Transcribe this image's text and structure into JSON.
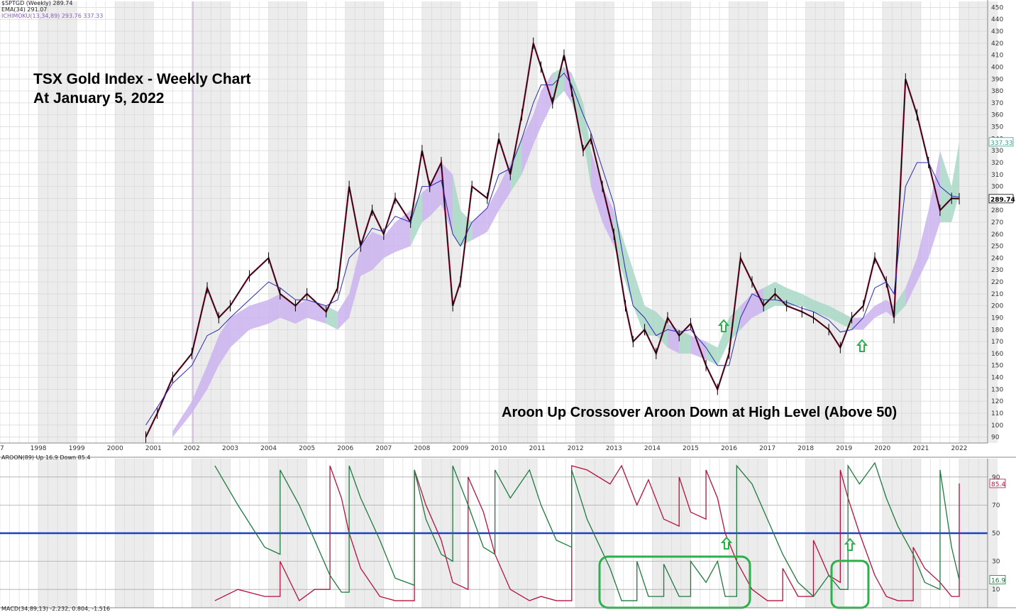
{
  "colors": {
    "price": "#000000",
    "price_down": "#b0003a",
    "ema": "#2a2ab0",
    "cloud_bull": "#cbb3ee",
    "cloud_bear": "#a9d8c7",
    "aroon_up": "#1f7a3f",
    "aroon_down": "#b3123f",
    "midline": "#2040c8",
    "arrow": "#2bb04a",
    "highlight_box": "#2bb04a",
    "grid": "#d6d6d6",
    "band": "#ececec"
  },
  "legend": {
    "symbol": "$SPTGD (Weekly) 289.74",
    "ema": "EMA(34) 291.07",
    "ichimoku": "ICHIMOKU(13,34,89) 293.76 337.33",
    "aroon": "AROON(89) Up 16.9 Down 85.4",
    "macd": "MACD(34,89,13) -2.232, 0.804, -1.516"
  },
  "titles": {
    "line1": "TSX Gold Index - Weekly Chart",
    "line2": "At January 5, 2022",
    "annotation": "Aroon Up Crossover Aroon Down at High Level (Above 50)"
  },
  "chart_data": [
    {
      "type": "line",
      "name": "price",
      "ylim": [
        85,
        455
      ],
      "y_ticks": [
        90,
        100,
        110,
        120,
        130,
        140,
        150,
        160,
        170,
        180,
        190,
        200,
        210,
        220,
        230,
        240,
        250,
        260,
        270,
        280,
        290,
        300,
        310,
        320,
        330,
        340,
        350,
        360,
        370,
        380,
        390,
        400,
        410,
        420,
        430,
        440,
        450
      ],
      "x_ticks": [
        "7",
        "1998",
        "1999",
        "2000",
        "2001",
        "2002",
        "2003",
        "2004",
        "2005",
        "2006",
        "2007",
        "2008",
        "2009",
        "2010",
        "2011",
        "2012",
        "2013",
        "2014",
        "2015",
        "2016",
        "2017",
        "2018",
        "2019",
        "2020",
        "2021",
        "2022"
      ],
      "price_labels": [
        "337.33",
        "289.74"
      ],
      "x": [
        2000.8,
        2001.1,
        2001.5,
        2002.0,
        2002.4,
        2002.7,
        2003.0,
        2003.5,
        2004.0,
        2004.3,
        2004.7,
        2005.0,
        2005.5,
        2005.8,
        2006.1,
        2006.4,
        2006.7,
        2007.0,
        2007.3,
        2007.7,
        2008.0,
        2008.2,
        2008.5,
        2008.8,
        2009.0,
        2009.3,
        2009.7,
        2010.0,
        2010.3,
        2010.6,
        2010.9,
        2011.1,
        2011.4,
        2011.7,
        2011.9,
        2012.2,
        2012.4,
        2012.7,
        2013.0,
        2013.3,
        2013.5,
        2013.8,
        2014.1,
        2014.4,
        2014.7,
        2015.0,
        2015.4,
        2015.7,
        2016.0,
        2016.3,
        2016.6,
        2016.9,
        2017.2,
        2017.5,
        2017.9,
        2018.2,
        2018.6,
        2018.9,
        2019.2,
        2019.5,
        2019.8,
        2020.1,
        2020.3,
        2020.6,
        2020.9,
        2021.2,
        2021.5,
        2021.8,
        2022.0
      ],
      "close": [
        90,
        110,
        140,
        160,
        215,
        190,
        200,
        225,
        240,
        210,
        200,
        210,
        195,
        215,
        300,
        250,
        280,
        260,
        290,
        270,
        330,
        300,
        320,
        200,
        220,
        300,
        290,
        340,
        310,
        360,
        420,
        400,
        370,
        410,
        380,
        330,
        340,
        300,
        260,
        200,
        170,
        180,
        160,
        190,
        175,
        185,
        150,
        130,
        160,
        240,
        220,
        200,
        210,
        200,
        195,
        190,
        180,
        165,
        190,
        200,
        240,
        220,
        190,
        390,
        360,
        320,
        280,
        290,
        289.74
      ],
      "ema34": [
        100,
        115,
        135,
        150,
        175,
        180,
        190,
        205,
        220,
        215,
        205,
        205,
        200,
        205,
        240,
        250,
        265,
        262,
        275,
        270,
        300,
        300,
        305,
        260,
        250,
        270,
        282,
        310,
        315,
        340,
        370,
        385,
        385,
        395,
        385,
        360,
        345,
        315,
        285,
        230,
        200,
        190,
        175,
        180,
        178,
        180,
        165,
        150,
        150,
        190,
        210,
        205,
        205,
        203,
        198,
        195,
        188,
        178,
        180,
        190,
        215,
        220,
        210,
        300,
        320,
        320,
        300,
        292,
        291.07
      ],
      "cloud_top": [
        null,
        null,
        95,
        120,
        150,
        175,
        190,
        200,
        205,
        210,
        200,
        205,
        200,
        195,
        210,
        250,
        262,
        258,
        270,
        280,
        295,
        300,
        320,
        310,
        280,
        270,
        282,
        300,
        320,
        340,
        360,
        380,
        395,
        400,
        395,
        370,
        330,
        300,
        280,
        250,
        230,
        200,
        195,
        185,
        180,
        175,
        170,
        165,
        190,
        200,
        210,
        215,
        220,
        215,
        210,
        205,
        200,
        195,
        190,
        190,
        200,
        205,
        200,
        215,
        240,
        280,
        330,
        300,
        337.33
      ],
      "cloud_bottom": [
        null,
        null,
        90,
        110,
        130,
        150,
        165,
        180,
        185,
        190,
        185,
        190,
        185,
        180,
        190,
        225,
        230,
        240,
        245,
        250,
        270,
        275,
        285,
        260,
        250,
        255,
        262,
        280,
        295,
        310,
        335,
        350,
        370,
        380,
        370,
        340,
        300,
        270,
        250,
        220,
        200,
        175,
        175,
        165,
        160,
        160,
        155,
        150,
        170,
        180,
        190,
        195,
        200,
        200,
        200,
        195,
        190,
        185,
        180,
        180,
        190,
        195,
        190,
        200,
        220,
        240,
        270,
        270,
        293.76
      ]
    },
    {
      "type": "line",
      "name": "aroon",
      "ylim": [
        0,
        100
      ],
      "y_ticks": [
        10,
        30,
        50,
        70,
        90
      ],
      "value_labels": [
        "85.4",
        "16.9"
      ],
      "x": [
        2002.6,
        2003.2,
        2003.9,
        2004.3,
        2004.8,
        2005.2,
        2005.6,
        2005.9,
        2006.1,
        2006.4,
        2006.9,
        2007.3,
        2007.8,
        2008.1,
        2008.5,
        2008.8,
        2009.2,
        2009.6,
        2009.9,
        2010.3,
        2010.8,
        2011.1,
        2011.5,
        2011.9,
        2012.3,
        2012.9,
        2013.2,
        2013.6,
        2013.9,
        2014.3,
        2014.7,
        2015.0,
        2015.4,
        2015.7,
        2015.9,
        2016.2,
        2016.6,
        2017.0,
        2017.4,
        2017.8,
        2018.2,
        2018.6,
        2018.9,
        2019.1,
        2019.4,
        2019.8,
        2020.1,
        2020.4,
        2020.8,
        2021.1,
        2021.5,
        2021.8,
        2022.0
      ],
      "aroon_up": [
        98,
        70,
        40,
        95,
        70,
        45,
        20,
        8,
        98,
        75,
        45,
        18,
        95,
        60,
        35,
        98,
        70,
        40,
        95,
        75,
        95,
        70,
        45,
        95,
        60,
        25,
        2,
        30,
        5,
        28,
        5,
        30,
        15,
        30,
        5,
        98,
        85,
        60,
        35,
        15,
        5,
        20,
        10,
        98,
        85,
        100,
        75,
        55,
        35,
        15,
        95,
        40,
        16.9
      ],
      "aroon_down": [
        2,
        10,
        5,
        30,
        2,
        10,
        98,
        75,
        50,
        25,
        5,
        2,
        95,
        70,
        45,
        15,
        90,
        65,
        35,
        10,
        2,
        5,
        2,
        98,
        95,
        85,
        98,
        70,
        88,
        60,
        90,
        65,
        95,
        75,
        50,
        30,
        10,
        2,
        25,
        5,
        45,
        20,
        95,
        75,
        50,
        20,
        5,
        2,
        40,
        25,
        15,
        5,
        85.4
      ]
    }
  ]
}
